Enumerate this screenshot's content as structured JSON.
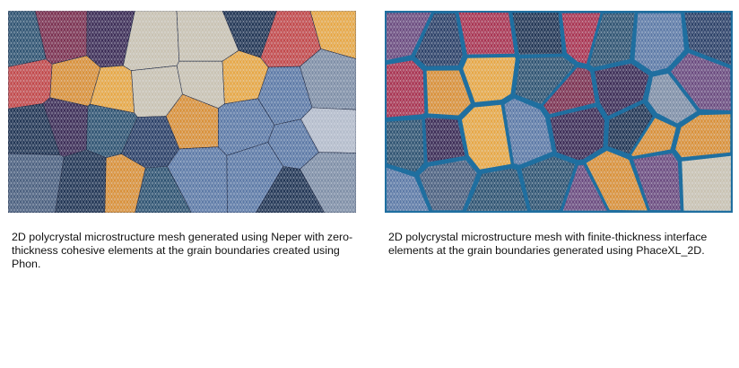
{
  "figures": [
    {
      "image_label": "zero-thickness-mesh",
      "boundary_style": "zero-thickness",
      "caption": "2D polycrystal microstructure mesh generated using Neper with zero-thickness cohesive elements at the grain boundaries created using Phon."
    },
    {
      "image_label": "finite-thickness-mesh",
      "boundary_style": "finite-thickness",
      "caption": "2D polycrystal microstructure mesh with finite-thickness interface elements at the grain boundaries generated using PhaceXL_2D."
    }
  ],
  "colors": {
    "page_background": "#ffffff",
    "caption_text": "#111111",
    "mesh_lines": "#e8ecf2",
    "interface_band": "#1f6fa0",
    "grain_palette": [
      "#2a3f66",
      "#5c79a6",
      "#7e8ea6",
      "#b4bccb",
      "#3b2b55",
      "#7a2f4f",
      "#a83250",
      "#c2484a",
      "#d99038",
      "#e7a745",
      "#203453",
      "#4a5f7e",
      "#9aa6b8",
      "#c9c2b2",
      "#6a4a7e",
      "#2d5270"
    ]
  }
}
